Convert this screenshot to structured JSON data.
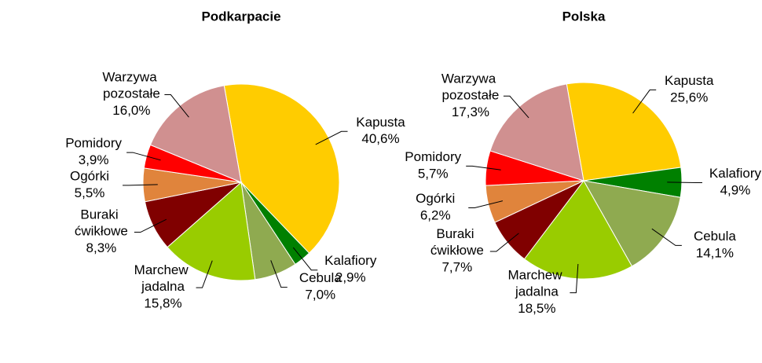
{
  "chart_data": [
    {
      "type": "pie",
      "title": "Podkarpacie",
      "categories": [
        "Kapusta",
        "Kalafiory",
        "Cebula",
        "Marchew jadalna",
        "Buraki ćwikłowe",
        "Ogórki",
        "Pomidory",
        "Warzywa pozostałe"
      ],
      "values": [
        40.6,
        2.9,
        7.0,
        15.8,
        8.3,
        5.5,
        3.9,
        16.0
      ],
      "value_labels": [
        "40,6%",
        "2,9%",
        "7,0%",
        "15,8%",
        "8,3%",
        "5,5%",
        "3,9%",
        "16,0%"
      ],
      "colors": [
        "#ffcc00",
        "#008000",
        "#8faa50",
        "#99cc00",
        "#800000",
        "#e0843c",
        "#ff0000",
        "#d09090"
      ]
    },
    {
      "type": "pie",
      "title": "Polska",
      "categories": [
        "Kapusta",
        "Kalafiory",
        "Cebula",
        "Marchew jadalna",
        "Buraki ćwikłowe",
        "Ogórki",
        "Pomidory",
        "Warzywa pozostałe"
      ],
      "values": [
        25.6,
        4.9,
        14.1,
        18.5,
        7.7,
        6.2,
        5.7,
        17.3
      ],
      "value_labels": [
        "25,6%",
        "4,9%",
        "14,1%",
        "18,5%",
        "7,7%",
        "6,2%",
        "5,7%",
        "17,3%"
      ],
      "colors": [
        "#ffcc00",
        "#008000",
        "#8faa50",
        "#99cc00",
        "#800000",
        "#e0843c",
        "#ff0000",
        "#d09090"
      ]
    }
  ]
}
